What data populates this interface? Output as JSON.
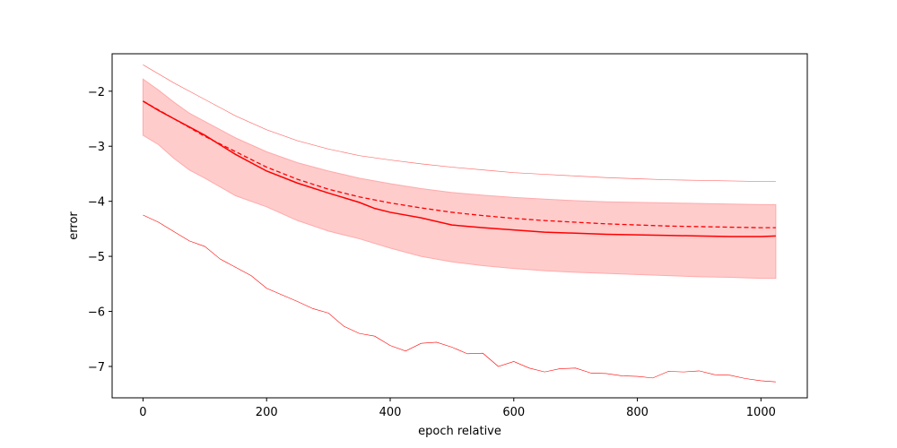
{
  "chart_data": {
    "type": "line",
    "title": "",
    "xlabel": "epoch relative",
    "ylabel": "error",
    "xlim": [
      -50,
      1075
    ],
    "ylim": [
      -7.57,
      -1.32
    ],
    "xticks": [
      0,
      200,
      400,
      600,
      800,
      1000
    ],
    "xtick_labels": [
      "0",
      "200",
      "400",
      "600",
      "800",
      "1000"
    ],
    "yticks": [
      -7,
      -6,
      -5,
      -4,
      -3,
      -2
    ],
    "ytick_labels": [
      "−7",
      "−6",
      "−5",
      "−4",
      "−3",
      "−2"
    ],
    "grid": false,
    "legend": "none",
    "colors": {
      "main": "#ff0000",
      "band_fill": "#ffcccc",
      "band_edge": "#ffaaaa",
      "upper": "#ff7070",
      "lower": "#ff0000"
    },
    "series": [
      {
        "style": "solid",
        "role": "mean",
        "x": [
          0,
          25,
          50,
          75,
          100,
          150,
          200,
          250,
          300,
          350,
          375,
          400,
          450,
          500,
          550,
          600,
          650,
          700,
          750,
          800,
          850,
          900,
          950,
          1000,
          1024
        ],
        "y": [
          -2.18,
          -2.35,
          -2.5,
          -2.65,
          -2.8,
          -3.15,
          -3.45,
          -3.67,
          -3.85,
          -4.02,
          -4.13,
          -4.2,
          -4.3,
          -4.43,
          -4.48,
          -4.52,
          -4.56,
          -4.58,
          -4.6,
          -4.61,
          -4.62,
          -4.63,
          -4.64,
          -4.64,
          -4.63
        ]
      },
      {
        "style": "dashed",
        "role": "reference",
        "x": [
          0,
          50,
          100,
          150,
          200,
          250,
          300,
          350,
          400,
          450,
          500,
          550,
          600,
          650,
          700,
          750,
          800,
          850,
          900,
          950,
          1000,
          1024
        ],
        "y": [
          -2.18,
          -2.5,
          -2.82,
          -3.1,
          -3.38,
          -3.6,
          -3.78,
          -3.92,
          -4.03,
          -4.12,
          -4.2,
          -4.26,
          -4.31,
          -4.35,
          -4.38,
          -4.41,
          -4.43,
          -4.45,
          -4.46,
          -4.47,
          -4.48,
          -4.48
        ]
      },
      {
        "style": "thin",
        "role": "upper",
        "x": [
          0,
          50,
          100,
          150,
          200,
          250,
          300,
          350,
          400,
          450,
          500,
          550,
          600,
          650,
          700,
          750,
          800,
          850,
          900,
          950,
          1000,
          1024
        ],
        "y": [
          -1.52,
          -1.85,
          -2.15,
          -2.45,
          -2.7,
          -2.9,
          -3.05,
          -3.17,
          -3.25,
          -3.32,
          -3.38,
          -3.43,
          -3.48,
          -3.51,
          -3.54,
          -3.57,
          -3.59,
          -3.61,
          -3.62,
          -3.63,
          -3.64,
          -3.64
        ]
      },
      {
        "style": "thin",
        "role": "lower",
        "x": [
          0,
          25,
          50,
          75,
          100,
          125,
          150,
          175,
          200,
          225,
          250,
          275,
          300,
          325,
          350,
          375,
          400,
          425,
          450,
          475,
          500,
          525,
          550,
          575,
          600,
          625,
          650,
          675,
          700,
          725,
          750,
          775,
          800,
          825,
          850,
          875,
          900,
          925,
          950,
          975,
          1000,
          1024
        ],
        "y": [
          -4.25,
          -4.38,
          -4.55,
          -4.72,
          -4.82,
          -5.05,
          -5.2,
          -5.35,
          -5.58,
          -5.7,
          -5.82,
          -5.95,
          -6.03,
          -6.27,
          -6.4,
          -6.45,
          -6.62,
          -6.72,
          -6.58,
          -6.56,
          -6.65,
          -6.77,
          -6.76,
          -7.0,
          -6.91,
          -7.03,
          -7.1,
          -7.04,
          -7.03,
          -7.12,
          -7.13,
          -7.17,
          -7.18,
          -7.21,
          -7.09,
          -7.1,
          -7.08,
          -7.15,
          -7.16,
          -7.22,
          -7.26,
          -7.28
        ]
      },
      {
        "style": "band",
        "role": "range",
        "x": [
          0,
          25,
          50,
          75,
          100,
          150,
          200,
          250,
          300,
          350,
          400,
          450,
          500,
          550,
          600,
          650,
          700,
          750,
          800,
          850,
          900,
          950,
          1000,
          1024
        ],
        "upper": [
          -1.78,
          -1.98,
          -2.2,
          -2.4,
          -2.55,
          -2.85,
          -3.1,
          -3.3,
          -3.45,
          -3.58,
          -3.68,
          -3.77,
          -3.84,
          -3.89,
          -3.93,
          -3.96,
          -3.99,
          -4.01,
          -4.02,
          -4.03,
          -4.04,
          -4.05,
          -4.06,
          -4.06
        ],
        "lower": [
          -2.8,
          -2.97,
          -3.22,
          -3.43,
          -3.58,
          -3.9,
          -4.1,
          -4.35,
          -4.54,
          -4.68,
          -4.85,
          -5.0,
          -5.1,
          -5.17,
          -5.22,
          -5.26,
          -5.29,
          -5.31,
          -5.33,
          -5.35,
          -5.37,
          -5.38,
          -5.4,
          -5.4
        ]
      }
    ]
  }
}
